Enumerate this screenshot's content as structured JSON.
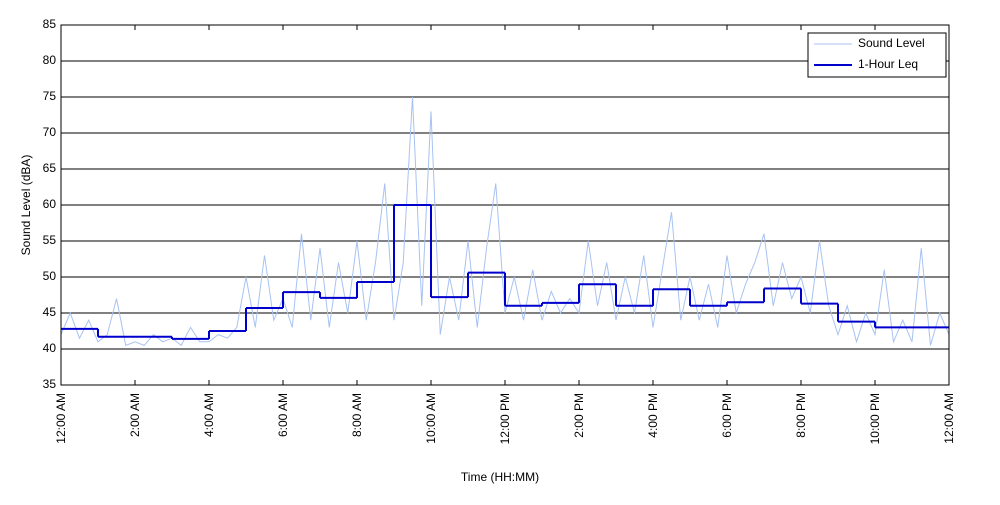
{
  "chart_data": {
    "type": "line",
    "xlabel": "Time (HH:MM)",
    "ylabel": "Sound Level (dBA)",
    "xlim": [
      0,
      24
    ],
    "ylim": [
      35,
      85
    ],
    "xticks": [
      {
        "value": 0,
        "label": "12:00 AM"
      },
      {
        "value": 2,
        "label": "2:00 AM"
      },
      {
        "value": 4,
        "label": "4:00 AM"
      },
      {
        "value": 6,
        "label": "6:00 AM"
      },
      {
        "value": 8,
        "label": "8:00 AM"
      },
      {
        "value": 10,
        "label": "10:00 AM"
      },
      {
        "value": 12,
        "label": "12:00 PM"
      },
      {
        "value": 14,
        "label": "2:00 PM"
      },
      {
        "value": 16,
        "label": "4:00 PM"
      },
      {
        "value": 18,
        "label": "6:00 PM"
      },
      {
        "value": 20,
        "label": "8:00 PM"
      },
      {
        "value": 22,
        "label": "10:00 PM"
      },
      {
        "value": 24,
        "label": "12:00 AM"
      }
    ],
    "yticks": [
      35,
      40,
      45,
      50,
      55,
      60,
      65,
      70,
      75,
      80,
      85
    ],
    "grid": true,
    "legend": "upper right",
    "series": [
      {
        "name": "Sound Level",
        "color": "#a8c2f2",
        "style": "line",
        "x": [
          0,
          0.25,
          0.5,
          0.75,
          1,
          1.25,
          1.5,
          1.75,
          2,
          2.25,
          2.5,
          2.75,
          3,
          3.25,
          3.5,
          3.75,
          4,
          4.25,
          4.5,
          4.75,
          5,
          5.25,
          5.5,
          5.75,
          6,
          6.25,
          6.5,
          6.75,
          7,
          7.25,
          7.5,
          7.75,
          8,
          8.25,
          8.5,
          8.75,
          9,
          9.25,
          9.5,
          9.75,
          10,
          10.25,
          10.5,
          10.75,
          11,
          11.25,
          11.5,
          11.75,
          12,
          12.25,
          12.5,
          12.75,
          13,
          13.25,
          13.5,
          13.75,
          14,
          14.25,
          14.5,
          14.75,
          15,
          15.25,
          15.5,
          15.75,
          16,
          16.25,
          16.5,
          16.75,
          17,
          17.25,
          17.5,
          17.75,
          18,
          18.25,
          18.5,
          18.75,
          19,
          19.25,
          19.5,
          19.75,
          20,
          20.25,
          20.5,
          20.75,
          21,
          21.25,
          21.5,
          21.75,
          22,
          22.25,
          22.5,
          22.75,
          23,
          23.25,
          23.5,
          23.75,
          24
        ],
        "values": [
          42,
          45,
          41.5,
          44,
          41,
          42,
          47,
          40.5,
          41,
          40.5,
          42,
          41,
          41.5,
          40.5,
          43,
          41,
          41,
          42,
          41.5,
          43,
          50,
          43,
          53,
          44,
          47,
          43,
          56,
          44,
          54,
          43,
          52,
          45,
          55,
          44,
          52,
          63,
          44,
          52,
          75,
          46,
          73,
          42,
          50,
          44,
          55,
          43,
          54,
          63,
          45,
          50,
          44,
          51,
          44,
          48,
          45,
          47,
          45,
          55,
          46,
          52,
          44,
          50,
          45,
          53,
          43,
          51,
          59,
          44,
          50,
          44,
          49,
          43,
          53,
          45,
          49,
          52,
          56,
          46,
          52,
          47,
          50,
          45,
          55,
          46,
          42,
          46,
          41,
          45,
          42,
          51,
          41,
          44,
          41,
          54,
          40.5,
          45,
          42
        ]
      },
      {
        "name": "1-Hour Leq",
        "color": "#0000cc",
        "style": "step",
        "bins": [
          0,
          1,
          2,
          3,
          4,
          5,
          6,
          7,
          8,
          9,
          10,
          11,
          12,
          13,
          14,
          15,
          16,
          17,
          18,
          19,
          20,
          21,
          22,
          23,
          24
        ],
        "values": [
          42.8,
          41.7,
          41.7,
          41.4,
          42.5,
          45.7,
          47.9,
          47.1,
          49.3,
          60.0,
          47.2,
          50.6,
          46.0,
          46.4,
          49.0,
          46.0,
          48.3,
          46.0,
          46.5,
          48.4,
          46.3,
          43.8,
          43.0,
          43.0
        ]
      }
    ]
  }
}
